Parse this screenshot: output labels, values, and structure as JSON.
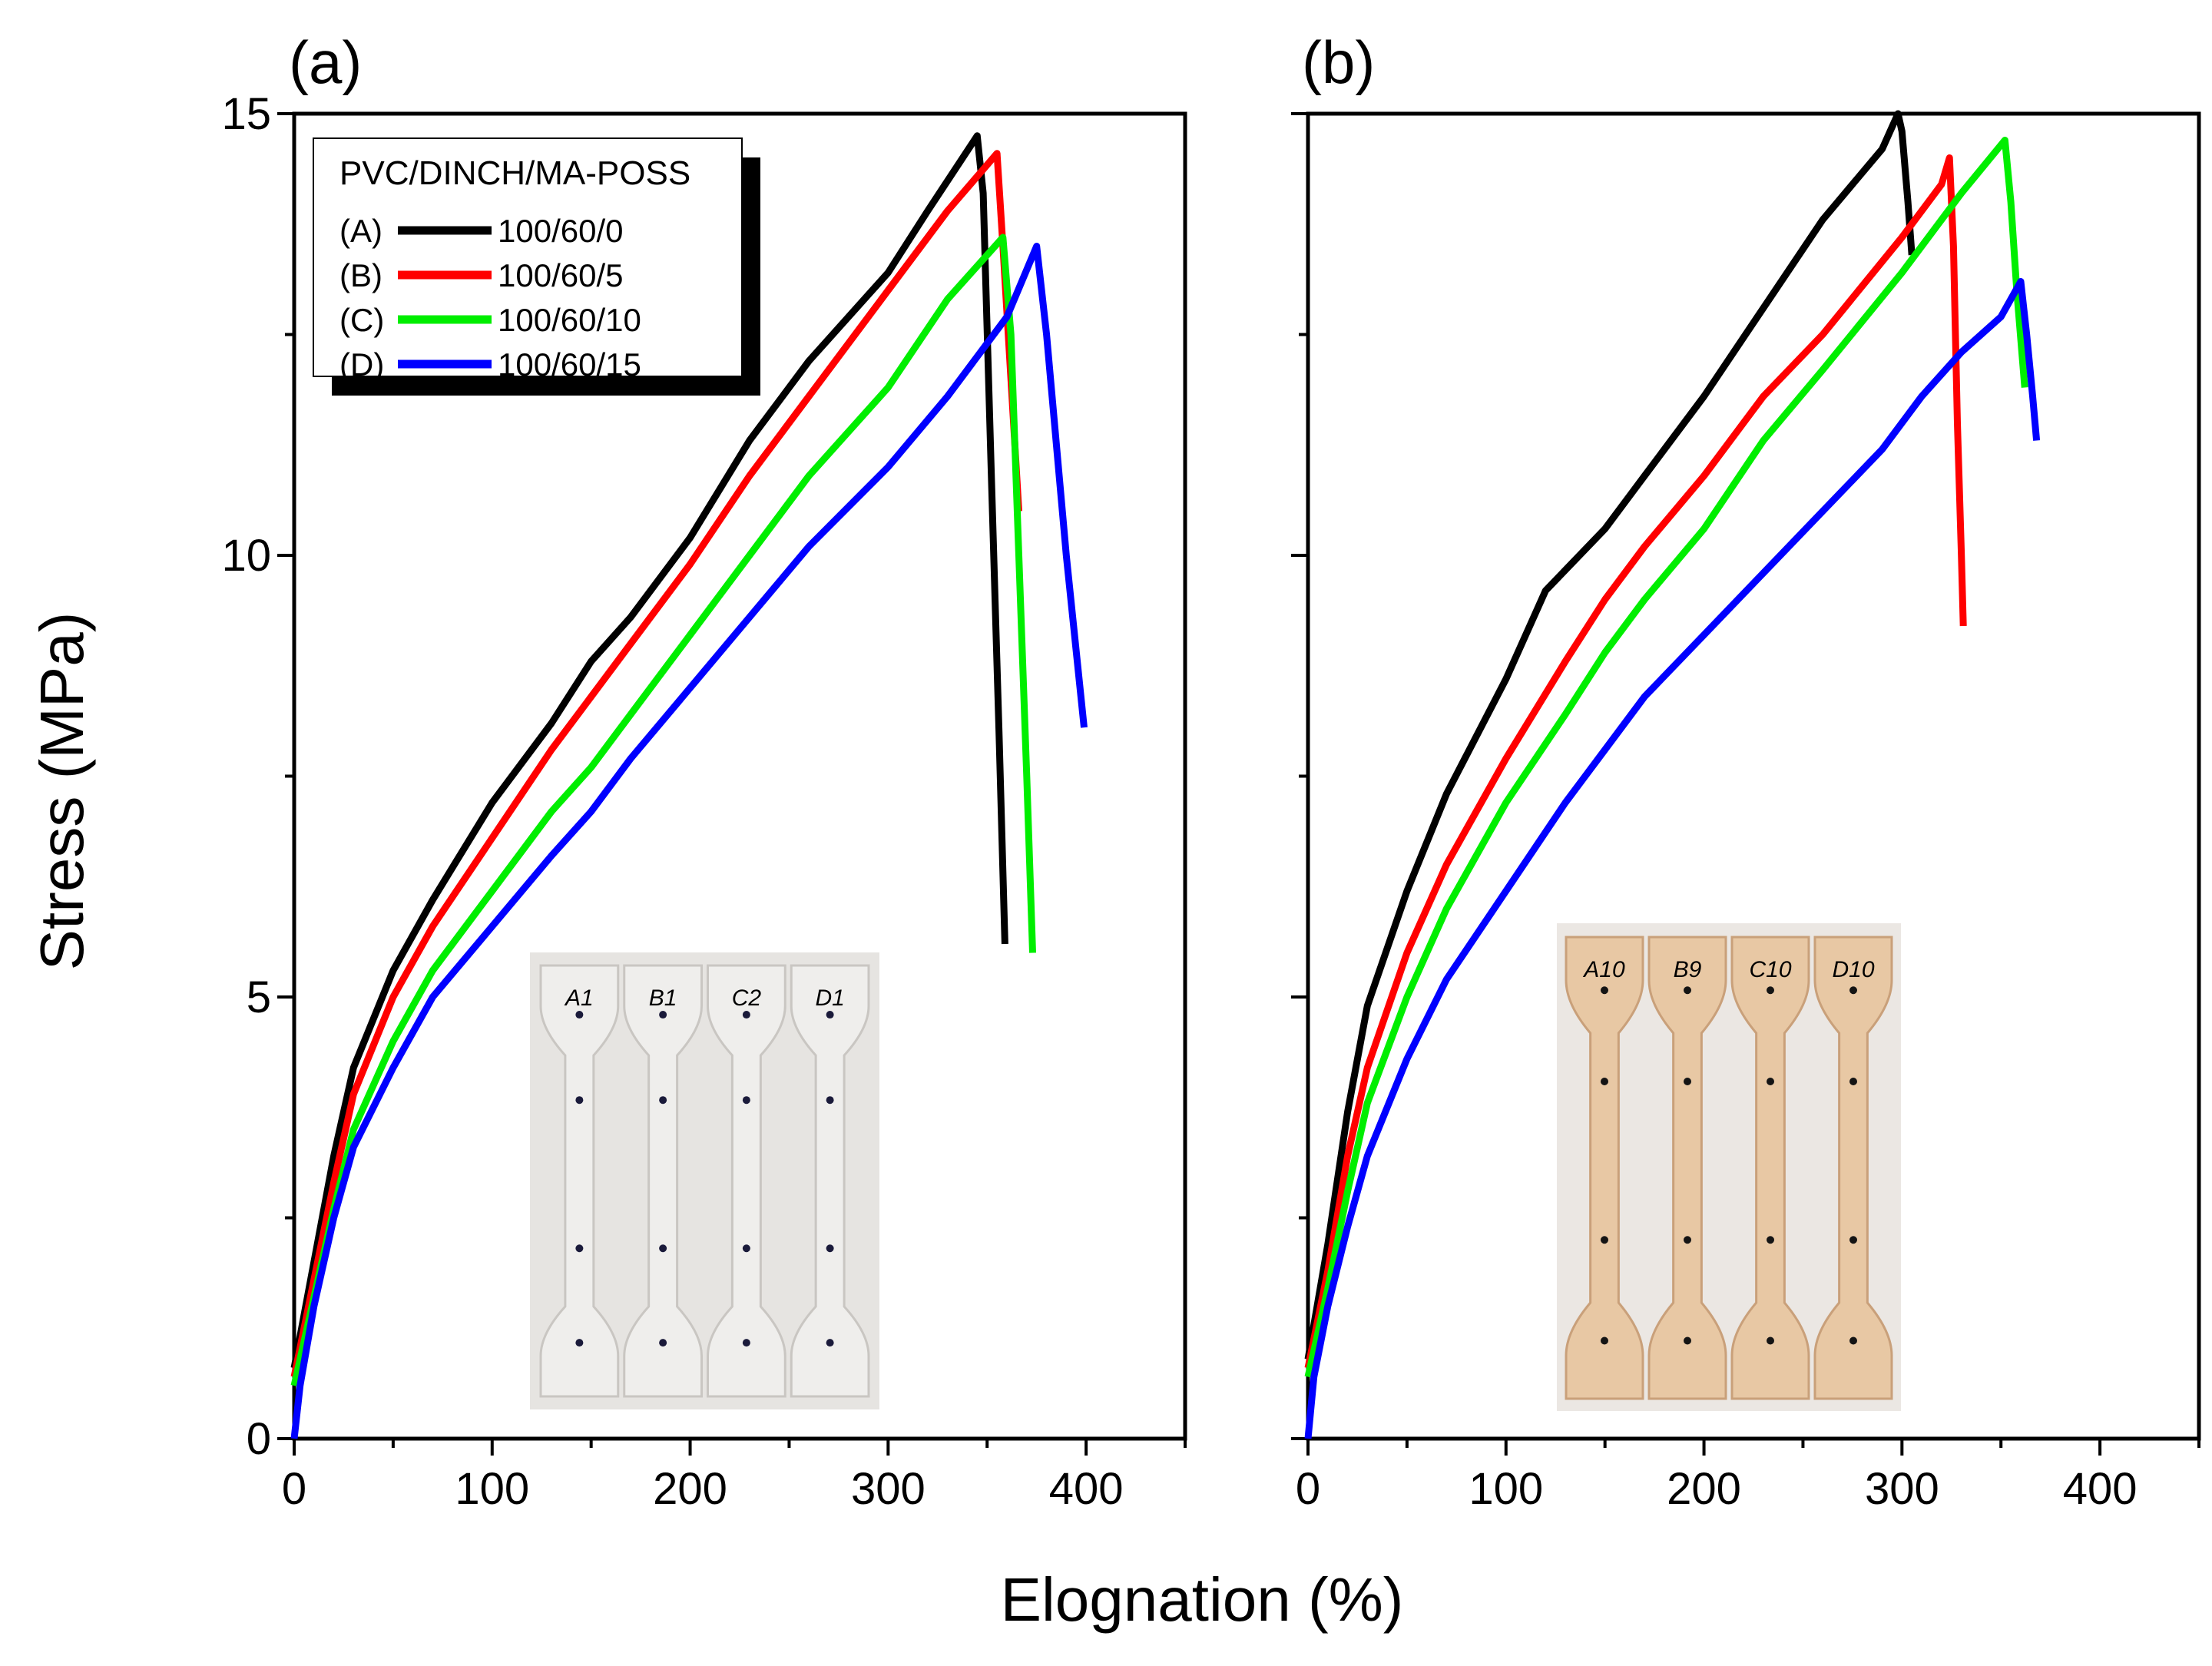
{
  "figure": {
    "ylabel": "Stress (MPa)",
    "xlabel": "Elognation (%)"
  },
  "legend": {
    "title": "PVC/DINCH/MA-POSS",
    "entries": [
      {
        "key": "(A)",
        "label": "100/60/0",
        "color": "#000000"
      },
      {
        "key": "(B)",
        "label": "100/60/5",
        "color": "#ff0000"
      },
      {
        "key": "(C)",
        "label": "100/60/10",
        "color": "#00ee00"
      },
      {
        "key": "(D)",
        "label": "100/60/15",
        "color": "#0000ff"
      }
    ]
  },
  "insets": {
    "a": {
      "labels": [
        "A1",
        "B1",
        "C2",
        "D1"
      ],
      "color": "#e9e6e2"
    },
    "b": {
      "labels": [
        "A10",
        "B9",
        "C10",
        "D10"
      ],
      "color": "#e8c8a4"
    }
  },
  "chart_data": [
    {
      "panel": "(a)",
      "type": "line",
      "title": "",
      "xlabel": "Elognation (%)",
      "ylabel": "Stress (MPa)",
      "xlim": [
        0,
        450
      ],
      "ylim": [
        0,
        15
      ],
      "xticks": [
        0,
        100,
        200,
        300,
        400
      ],
      "yticks": [
        0,
        5,
        10,
        15
      ],
      "grid": false,
      "legend_position": "top-left",
      "series": [
        {
          "name": "(A) 100/60/0",
          "color": "#000000",
          "points": [
            [
              0,
              0.8
            ],
            [
              10,
              2
            ],
            [
              20,
              3.2
            ],
            [
              30,
              4.2
            ],
            [
              50,
              5.3
            ],
            [
              70,
              6.1
            ],
            [
              100,
              7.2
            ],
            [
              130,
              8.1
            ],
            [
              150,
              8.8
            ],
            [
              170,
              9.3
            ],
            [
              200,
              10.2
            ],
            [
              230,
              11.3
            ],
            [
              260,
              12.2
            ],
            [
              300,
              13.2
            ],
            [
              320,
              13.9
            ],
            [
              345,
              14.75
            ],
            [
              348,
              14.1
            ],
            [
              352,
              11
            ],
            [
              356,
              8
            ],
            [
              359,
              5.6
            ]
          ]
        },
        {
          "name": "(B) 100/60/5",
          "color": "#ff0000",
          "points": [
            [
              0,
              0.7
            ],
            [
              10,
              1.8
            ],
            [
              20,
              2.9
            ],
            [
              30,
              3.9
            ],
            [
              50,
              5
            ],
            [
              70,
              5.8
            ],
            [
              100,
              6.8
            ],
            [
              130,
              7.8
            ],
            [
              150,
              8.4
            ],
            [
              170,
              9
            ],
            [
              200,
              9.9
            ],
            [
              230,
              10.9
            ],
            [
              260,
              11.8
            ],
            [
              300,
              13
            ],
            [
              330,
              13.9
            ],
            [
              355,
              14.55
            ],
            [
              358,
              13.5
            ],
            [
              362,
              12
            ],
            [
              366,
              10.5
            ]
          ]
        },
        {
          "name": "(C) 100/60/10",
          "color": "#00ee00",
          "points": [
            [
              0,
              0.6
            ],
            [
              10,
              1.6
            ],
            [
              20,
              2.6
            ],
            [
              30,
              3.5
            ],
            [
              50,
              4.5
            ],
            [
              70,
              5.3
            ],
            [
              100,
              6.2
            ],
            [
              130,
              7.1
            ],
            [
              150,
              7.6
            ],
            [
              170,
              8.2
            ],
            [
              200,
              9.1
            ],
            [
              230,
              10
            ],
            [
              260,
              10.9
            ],
            [
              300,
              11.9
            ],
            [
              330,
              12.9
            ],
            [
              358,
              13.6
            ],
            [
              362,
              12.5
            ],
            [
              366,
              10
            ],
            [
              370,
              7.5
            ],
            [
              373,
              5.5
            ]
          ]
        },
        {
          "name": "(D) 100/60/15",
          "color": "#0000ff",
          "points": [
            [
              0,
              0
            ],
            [
              3,
              0.6
            ],
            [
              10,
              1.5
            ],
            [
              20,
              2.5
            ],
            [
              30,
              3.3
            ],
            [
              50,
              4.2
            ],
            [
              70,
              5
            ],
            [
              100,
              5.8
            ],
            [
              130,
              6.6
            ],
            [
              150,
              7.1
            ],
            [
              170,
              7.7
            ],
            [
              200,
              8.5
            ],
            [
              230,
              9.3
            ],
            [
              260,
              10.1
            ],
            [
              300,
              11
            ],
            [
              330,
              11.8
            ],
            [
              360,
              12.7
            ],
            [
              375,
              13.5
            ],
            [
              380,
              12.5
            ],
            [
              390,
              10
            ],
            [
              399,
              8.05
            ]
          ]
        }
      ]
    },
    {
      "panel": "(b)",
      "type": "line",
      "title": "",
      "xlabel": "Elognation (%)",
      "ylabel": "Stress (MPa)",
      "xlim": [
        0,
        450
      ],
      "ylim": [
        0,
        15
      ],
      "xticks": [
        0,
        100,
        200,
        300,
        400
      ],
      "yticks": [
        0,
        5,
        10,
        15
      ],
      "grid": false,
      "series": [
        {
          "name": "(A) 100/60/0",
          "color": "#000000",
          "points": [
            [
              0,
              0.9
            ],
            [
              10,
              2.2
            ],
            [
              20,
              3.7
            ],
            [
              30,
              4.9
            ],
            [
              50,
              6.2
            ],
            [
              70,
              7.3
            ],
            [
              100,
              8.6
            ],
            [
              120,
              9.6
            ],
            [
              150,
              10.3
            ],
            [
              170,
              10.9
            ],
            [
              200,
              11.8
            ],
            [
              230,
              12.8
            ],
            [
              260,
              13.8
            ],
            [
              290,
              14.6
            ],
            [
              298,
              15
            ],
            [
              300,
              14.8
            ],
            [
              303,
              14
            ],
            [
              305,
              13.4
            ]
          ]
        },
        {
          "name": "(B) 100/60/5",
          "color": "#ff0000",
          "points": [
            [
              0,
              0.8
            ],
            [
              10,
              1.9
            ],
            [
              20,
              3.2
            ],
            [
              30,
              4.2
            ],
            [
              50,
              5.5
            ],
            [
              70,
              6.5
            ],
            [
              100,
              7.7
            ],
            [
              130,
              8.8
            ],
            [
              150,
              9.5
            ],
            [
              170,
              10.1
            ],
            [
              200,
              10.9
            ],
            [
              230,
              11.8
            ],
            [
              260,
              12.5
            ],
            [
              300,
              13.6
            ],
            [
              320,
              14.2
            ],
            [
              324,
              14.5
            ],
            [
              326,
              13.5
            ],
            [
              328,
              11.5
            ],
            [
              330,
              10
            ],
            [
              331,
              9.2
            ]
          ]
        },
        {
          "name": "(C) 100/60/10",
          "color": "#00ee00",
          "points": [
            [
              0,
              0.7
            ],
            [
              10,
              1.7
            ],
            [
              20,
              2.8
            ],
            [
              30,
              3.8
            ],
            [
              50,
              5
            ],
            [
              70,
              6
            ],
            [
              100,
              7.2
            ],
            [
              130,
              8.2
            ],
            [
              150,
              8.9
            ],
            [
              170,
              9.5
            ],
            [
              200,
              10.3
            ],
            [
              230,
              11.3
            ],
            [
              260,
              12.1
            ],
            [
              300,
              13.2
            ],
            [
              330,
              14.1
            ],
            [
              352,
              14.7
            ],
            [
              355,
              14
            ],
            [
              358,
              13
            ],
            [
              362,
              11.9
            ]
          ]
        },
        {
          "name": "(D) 100/60/15",
          "color": "#0000ff",
          "points": [
            [
              0,
              0
            ],
            [
              3,
              0.7
            ],
            [
              10,
              1.5
            ],
            [
              20,
              2.4
            ],
            [
              30,
              3.2
            ],
            [
              50,
              4.3
            ],
            [
              70,
              5.2
            ],
            [
              100,
              6.2
            ],
            [
              130,
              7.2
            ],
            [
              150,
              7.8
            ],
            [
              170,
              8.4
            ],
            [
              200,
              9.1
            ],
            [
              230,
              9.8
            ],
            [
              260,
              10.5
            ],
            [
              290,
              11.2
            ],
            [
              310,
              11.8
            ],
            [
              330,
              12.3
            ],
            [
              350,
              12.7
            ],
            [
              360,
              13.1
            ],
            [
              363,
              12.5
            ],
            [
              366,
              11.8
            ],
            [
              368,
              11.3
            ]
          ]
        }
      ]
    }
  ]
}
